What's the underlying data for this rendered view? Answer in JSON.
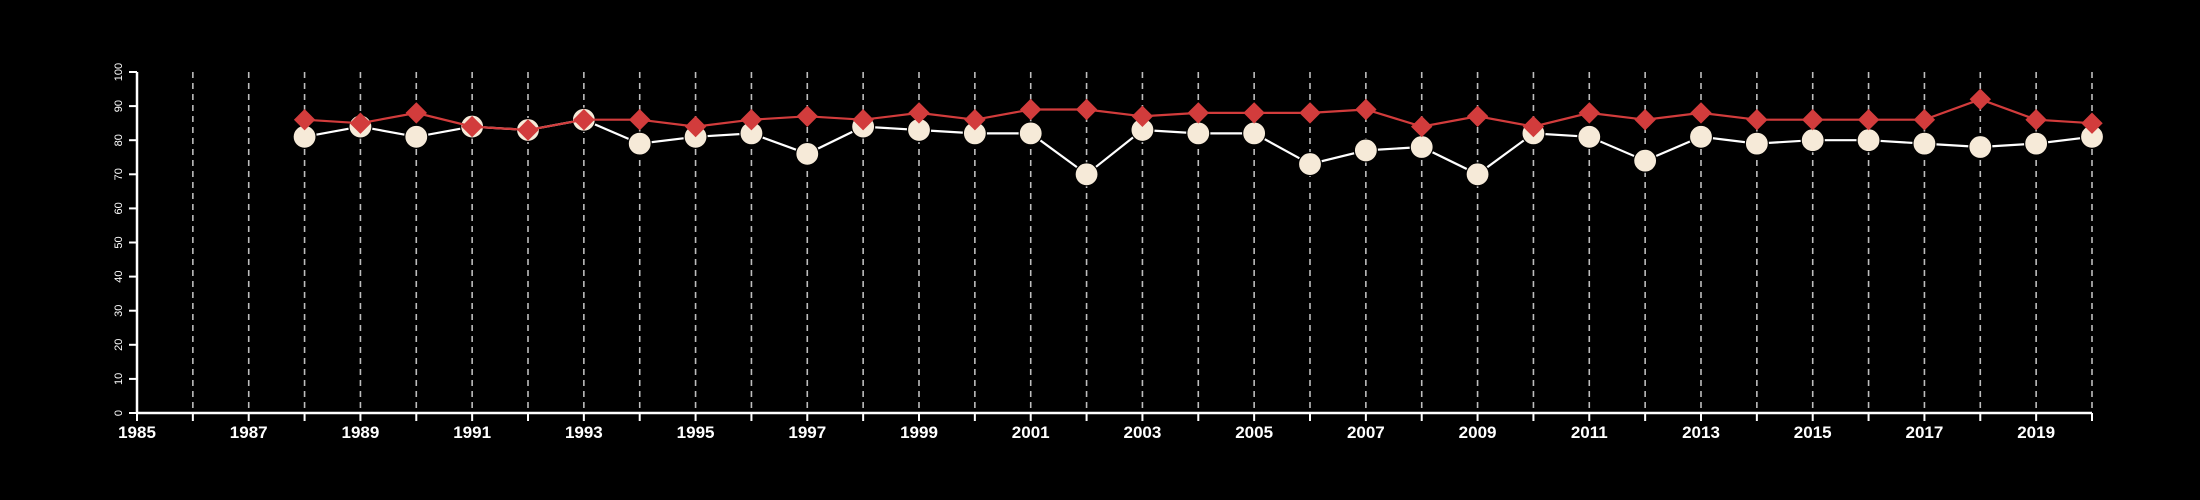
{
  "chart_data": {
    "type": "line",
    "title": "",
    "xlabel": "",
    "ylabel": "",
    "xlim": [
      1985,
      2020
    ],
    "ylim": [
      0,
      100
    ],
    "x_ticks": [
      1985,
      1987,
      1989,
      1991,
      1993,
      1995,
      1997,
      1999,
      2001,
      2003,
      2005,
      2007,
      2009,
      2011,
      2013,
      2015,
      2017,
      2019
    ],
    "y_ticks": [
      0,
      10,
      20,
      30,
      40,
      50,
      60,
      70,
      80,
      90,
      100
    ],
    "vertical_grid": true,
    "horizontal_grid": false,
    "x": [
      1988,
      1989,
      1990,
      1991,
      1992,
      1993,
      1994,
      1995,
      1996,
      1997,
      1998,
      1999,
      2000,
      2001,
      2002,
      2003,
      2004,
      2005,
      2006,
      2007,
      2008,
      2009,
      2010,
      2011,
      2012,
      2013,
      2014,
      2015,
      2016,
      2017,
      2018,
      2019,
      2020
    ],
    "series": [
      {
        "marker": "circle",
        "color": "#f6ead8",
        "line_color": "#ffffff",
        "values": [
          81,
          84,
          81,
          84,
          83,
          86,
          79,
          81,
          82,
          76,
          84,
          83,
          82,
          82,
          70,
          83,
          82,
          82,
          73,
          77,
          78,
          70,
          82,
          81,
          74,
          81,
          79,
          80,
          80,
          79,
          78,
          79,
          81
        ]
      },
      {
        "marker": "diamond",
        "color": "#d23c3c",
        "line_color": "#d23c3c",
        "values": [
          86,
          85,
          88,
          84,
          83,
          86,
          86,
          84,
          86,
          87,
          86,
          88,
          86,
          89,
          89,
          87,
          88,
          88,
          88,
          89,
          84,
          87,
          84,
          88,
          86,
          88,
          86,
          86,
          86,
          86,
          92,
          86,
          85
        ]
      }
    ]
  }
}
